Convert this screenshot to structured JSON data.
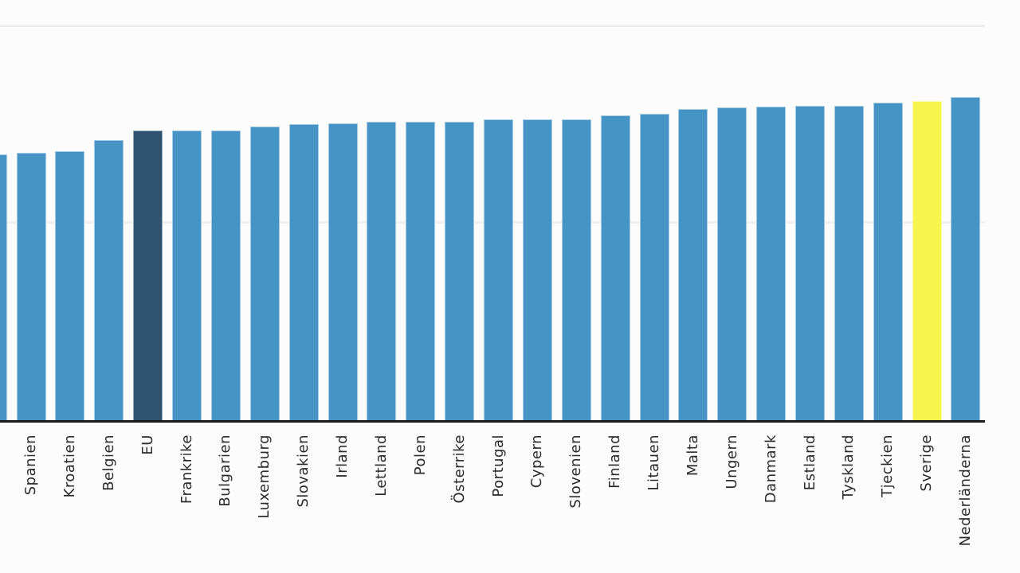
{
  "chart_data": {
    "type": "bar",
    "categories": [
      "",
      "Spanien",
      "Kroatien",
      "Belgien",
      "EU",
      "Frankrike",
      "Bulgarien",
      "Luxemburg",
      "Slovakien",
      "Irland",
      "Lettland",
      "Polen",
      "Österrike",
      "Portugal",
      "Cypern",
      "Slovenien",
      "Finland",
      "Litauen",
      "Malta",
      "Ungern",
      "Danmark",
      "Estland",
      "Tyskland",
      "Tjeckien",
      "Sverige",
      "Nederländerna"
    ],
    "values": [
      67.4,
      67.7,
      68.1,
      70.9,
      73.3,
      73.4,
      73.4,
      74.3,
      75.0,
      75.3,
      75.7,
      75.7,
      75.7,
      76.3,
      76.3,
      76.3,
      77.2,
      77.7,
      78.8,
      79.3,
      79.4,
      79.7,
      79.7,
      80.4,
      80.8,
      81.9
    ],
    "bar_colors": {
      "default": "#4694c5",
      "eu": "#2d536e",
      "sverige": "#f7f54d"
    },
    "highlighted_bars": {
      "EU": "eu",
      "Sverige": "sverige"
    },
    "axis_color": "#1b1b1b",
    "gridline_color": "#ededed",
    "label_color": "#2b2b2b",
    "x_label_rotation_deg": -90,
    "ylim": [
      0,
      100
    ],
    "gridline_values": [
      50,
      100
    ],
    "grid": true,
    "legend": false,
    "notes": "Chart is cropped: title, y-axis tick labels and the label of the first (leftmost, partially visible) bar are outside the screenshot. Values are estimated from gridline spacing assuming baseline 0 and gridlines at 50 and 100."
  }
}
